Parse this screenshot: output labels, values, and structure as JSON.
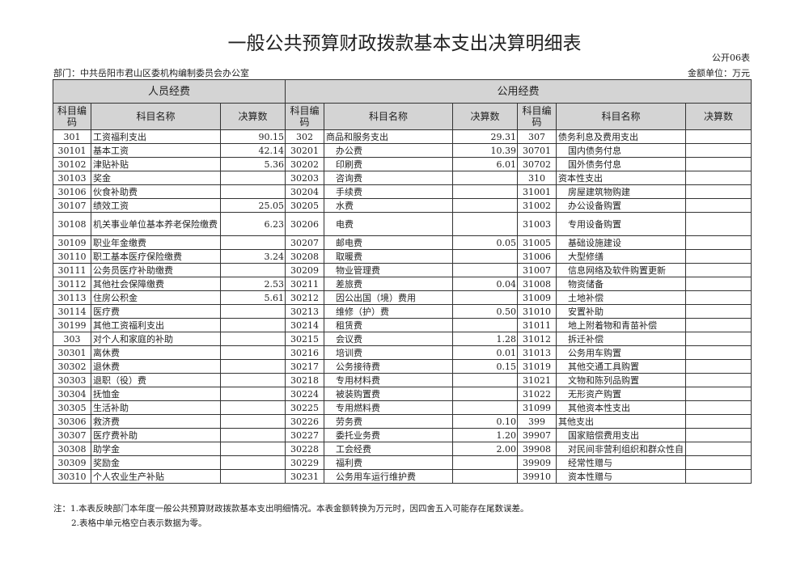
{
  "title": "一般公共预算财政拨款基本支出决算明细表",
  "form_no": "公开06表",
  "department": "部门：中共岳阳市君山区委机构编制委员会办公室",
  "unit": "金额单位：万元",
  "groups": [
    "人员经费",
    "公用经费"
  ],
  "headers": [
    "科目编码",
    "科目名称",
    "决算数",
    "科目编码",
    "科目名称",
    "决算数",
    "科目编码",
    "科目名称",
    "决算数"
  ],
  "rows": [
    [
      "301",
      "工资福利支出",
      "90.15",
      "302",
      "商品和服务支出",
      "29.31",
      "307",
      "债务利息及费用支出",
      ""
    ],
    [
      "30101",
      "基本工资",
      "42.14",
      "30201",
      "办公费",
      "10.39",
      "30701",
      "国内债务付息",
      ""
    ],
    [
      "30102",
      "津贴补贴",
      "5.36",
      "30202",
      "印刷费",
      "6.01",
      "30702",
      "国外债务付息",
      ""
    ],
    [
      "30103",
      "奖金",
      "",
      "30203",
      "咨询费",
      "",
      "310",
      "资本性支出",
      ""
    ],
    [
      "30106",
      "伙食补助费",
      "",
      "30204",
      "手续费",
      "",
      "31001",
      "房屋建筑物购建",
      ""
    ],
    [
      "30107",
      "绩效工资",
      "25.05",
      "30205",
      "水费",
      "",
      "31002",
      "办公设备购置",
      ""
    ],
    [
      "30108",
      "机关事业单位基本养老保险缴费",
      "6.23",
      "30206",
      "电费",
      "",
      "31003",
      "专用设备购置",
      ""
    ],
    [
      "30109",
      "职业年金缴费",
      "",
      "30207",
      "邮电费",
      "0.05",
      "31005",
      "基础设施建设",
      ""
    ],
    [
      "30110",
      "职工基本医疗保险缴费",
      "3.24",
      "30208",
      "取暖费",
      "",
      "31006",
      "大型修缮",
      ""
    ],
    [
      "30111",
      "公务员医疗补助缴费",
      "",
      "30209",
      "物业管理费",
      "",
      "31007",
      "信息网络及软件购置更新",
      ""
    ],
    [
      "30112",
      "其他社会保障缴费",
      "2.53",
      "30211",
      "差旅费",
      "0.04",
      "31008",
      "物资储备",
      ""
    ],
    [
      "30113",
      "住房公积金",
      "5.61",
      "30212",
      "因公出国（境）费用",
      "",
      "31009",
      "土地补偿",
      ""
    ],
    [
      "30114",
      "医疗费",
      "",
      "30213",
      "维修（护）费",
      "0.50",
      "31010",
      "安置补助",
      ""
    ],
    [
      "30199",
      "其他工资福利支出",
      "",
      "30214",
      "租赁费",
      "",
      "31011",
      "地上附着物和青苗补偿",
      ""
    ],
    [
      "303",
      "对个人和家庭的补助",
      "",
      "30215",
      "会议费",
      "1.28",
      "31012",
      "拆迁补偿",
      ""
    ],
    [
      "30301",
      "离休费",
      "",
      "30216",
      "培训费",
      "0.01",
      "31013",
      "公务用车购置",
      ""
    ],
    [
      "30302",
      "退休费",
      "",
      "30217",
      "公务接待费",
      "0.15",
      "31019",
      "其他交通工具购置",
      ""
    ],
    [
      "30303",
      "退职（役）费",
      "",
      "30218",
      "专用材料费",
      "",
      "31021",
      "文物和陈列品购置",
      ""
    ],
    [
      "30304",
      "抚恤金",
      "",
      "30224",
      "被装购置费",
      "",
      "31022",
      "无形资产购置",
      ""
    ],
    [
      "30305",
      "生活补助",
      "",
      "30225",
      "专用燃料费",
      "",
      "31099",
      "其他资本性支出",
      ""
    ],
    [
      "30306",
      "救济费",
      "",
      "30226",
      "劳务费",
      "0.10",
      "399",
      "其他支出",
      ""
    ],
    [
      "30307",
      "医疗费补助",
      "",
      "30227",
      "委托业务费",
      "1.20",
      "39907",
      "国家赔偿费用支出",
      ""
    ],
    [
      "30308",
      "助学金",
      "",
      "30228",
      "工会经费",
      "2.00",
      "39908",
      "对民间非营利组织和群众性自",
      ""
    ],
    [
      "30309",
      "奖励金",
      "",
      "30229",
      "福利费",
      "",
      "39909",
      "经常性赠与",
      ""
    ],
    [
      "30310",
      "个人农业生产补贴",
      "",
      "30231",
      "公务用车运行维护费",
      "",
      "39910",
      "资本性赠与",
      ""
    ]
  ],
  "notes": [
    "注：1.本表反映部门本年度一般公共预算财政拨款基本支出明细情况。本表金额转换为万元时，因四舍五入可能存在尾数误差。",
    "2.表格中单元格空白表示数据为零。"
  ]
}
